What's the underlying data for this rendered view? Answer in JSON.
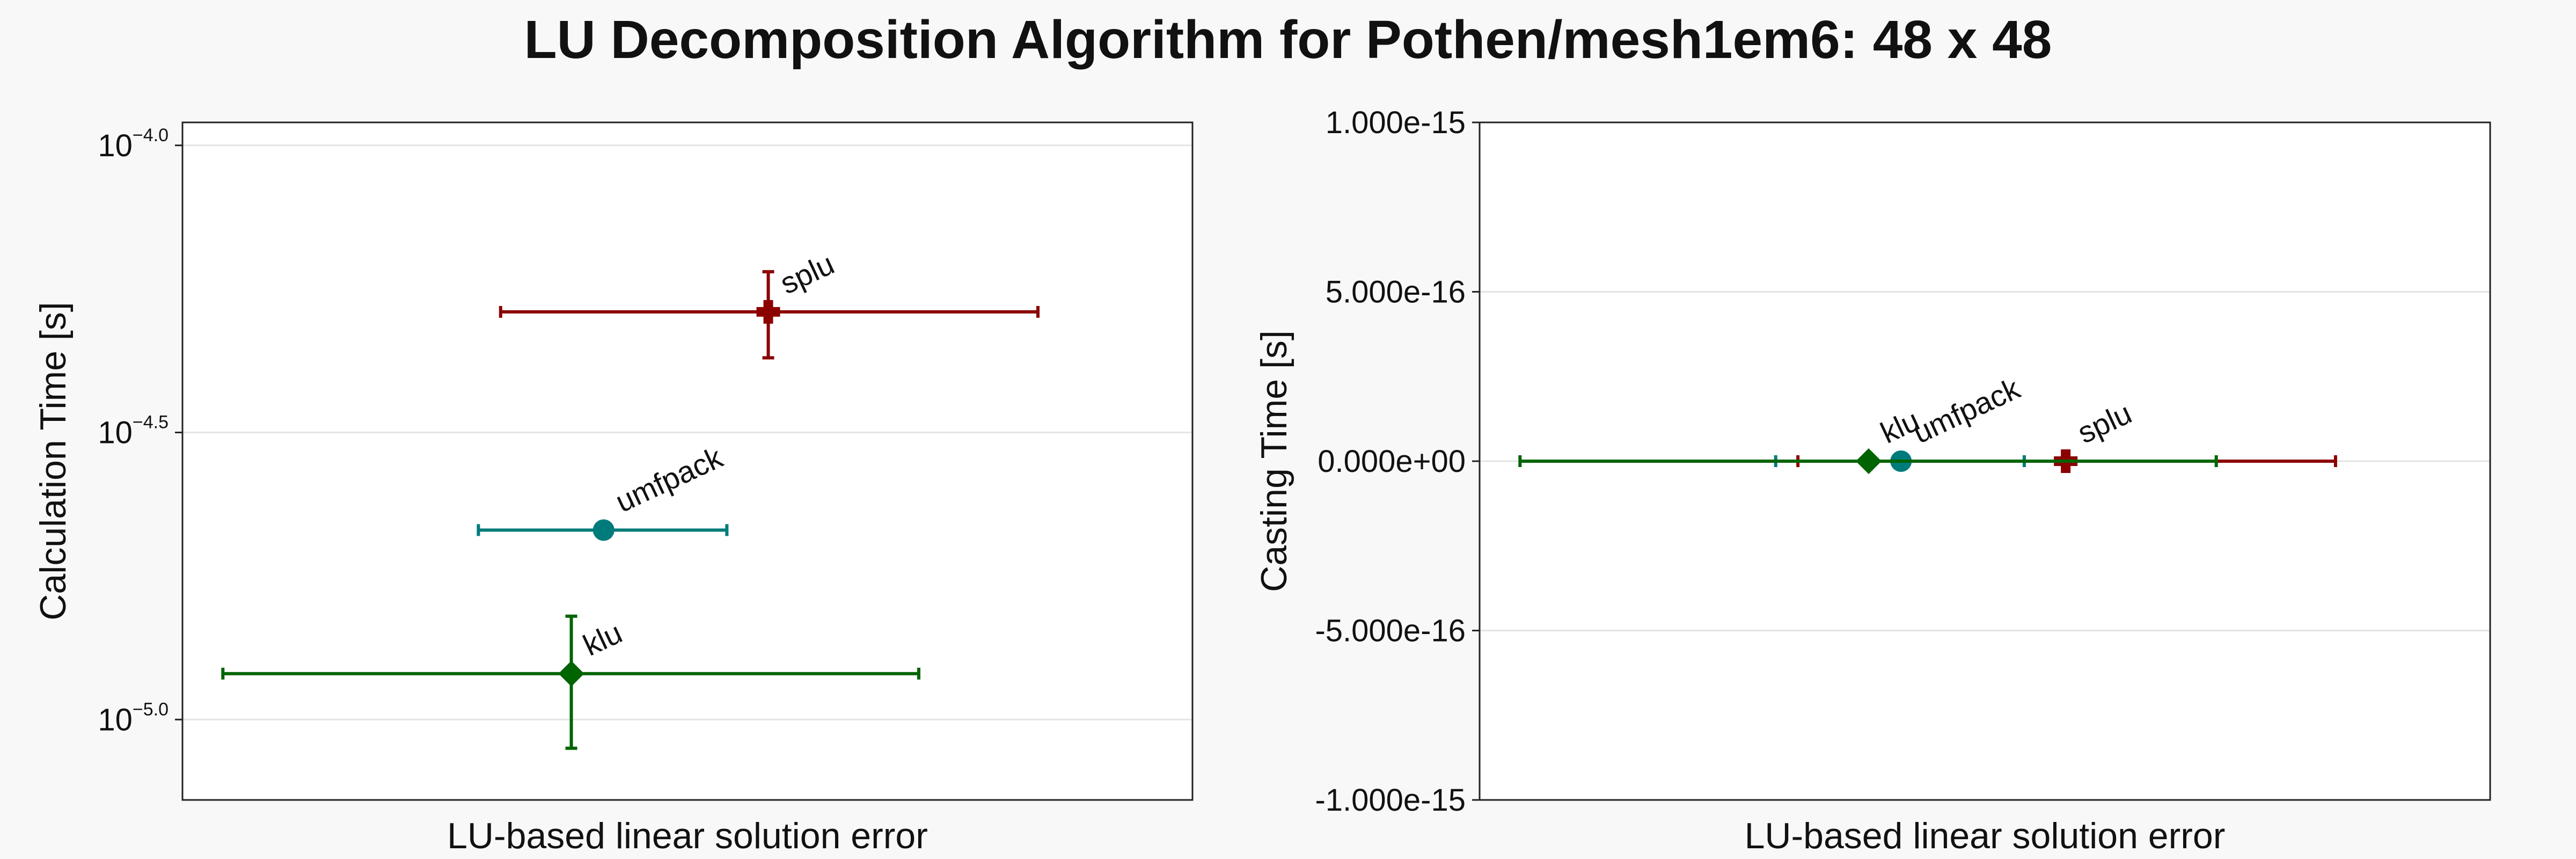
{
  "title": "LU Decomposition Algorithm for Pothen/mesh1em6: 48 x 48",
  "chart_data": [
    {
      "type": "scatter",
      "xlabel": "LU-based linear solution error",
      "ylabel": "Calculation Time [s]",
      "yscale": "log",
      "ylim_log10": [
        -5.14,
        -3.96
      ],
      "yticks": [
        {
          "base": "10",
          "exp": "−4.0",
          "value": -4.0
        },
        {
          "base": "10",
          "exp": "−4.5",
          "value": -4.5
        },
        {
          "base": "10",
          "exp": "−5.0",
          "value": -5.0
        }
      ],
      "xlim": [
        0,
        1
      ],
      "grid": true,
      "series": [
        {
          "name": "splu",
          "color": "#8b0000",
          "marker": "cross",
          "x": 0.58,
          "x_err": [
            0.315,
            0.847
          ],
          "y_log10": -4.29,
          "y_err_log10": [
            -4.37,
            -4.22
          ]
        },
        {
          "name": "umfpack",
          "color": "#007b7b",
          "marker": "circle",
          "x": 0.417,
          "x_err": [
            0.293,
            0.539
          ],
          "y_log10": -4.67
        },
        {
          "name": "klu",
          "color": "#006400",
          "marker": "diamond",
          "x": 0.385,
          "x_err": [
            0.04,
            0.729
          ],
          "y_log10": -4.92,
          "y_err_log10": [
            -5.05,
            -4.82
          ]
        }
      ]
    },
    {
      "type": "scatter",
      "xlabel": "LU-based linear solution error",
      "ylabel": "Casting Time [s]",
      "ylim": [
        -1e-15,
        1e-15
      ],
      "yticks": [
        {
          "label": "1.000e-15",
          "value": 1e-15
        },
        {
          "label": "5.000e-16",
          "value": 5e-16
        },
        {
          "label": "0.000e+00",
          "value": 0
        },
        {
          "label": "-5.000e-16",
          "value": -5e-16
        },
        {
          "label": "-1.000e-15",
          "value": -1e-15
        }
      ],
      "xlim": [
        0,
        1
      ],
      "grid": true,
      "series": [
        {
          "name": "splu",
          "color": "#8b0000",
          "marker": "cross",
          "x": 0.58,
          "x_err": [
            0.315,
            0.847
          ],
          "y": 0
        },
        {
          "name": "umfpack",
          "color": "#007b7b",
          "marker": "circle",
          "x": 0.417,
          "x_err": [
            0.293,
            0.539
          ],
          "y": 0
        },
        {
          "name": "klu",
          "color": "#006400",
          "marker": "diamond",
          "x": 0.385,
          "x_err": [
            0.04,
            0.729
          ],
          "y": 0
        }
      ]
    }
  ]
}
